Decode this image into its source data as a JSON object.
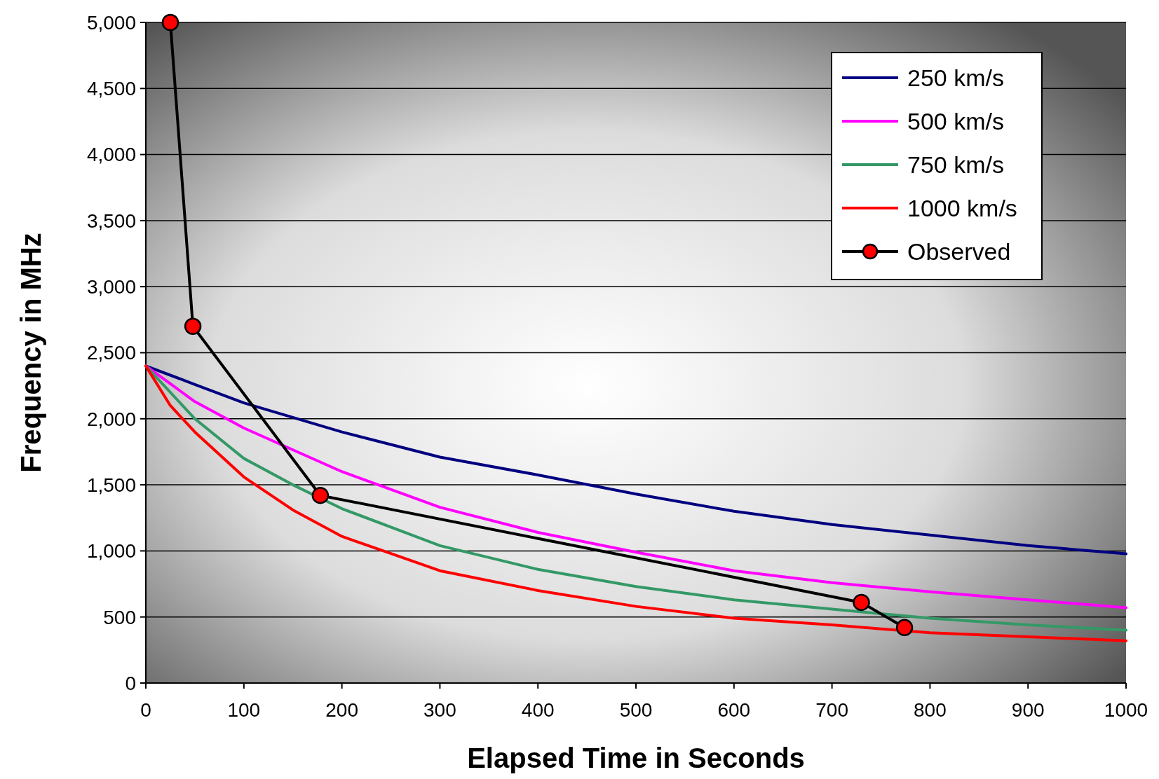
{
  "chart_data": {
    "type": "line",
    "xlabel": "Elapsed Time in Seconds",
    "ylabel": "Frequency in MHz",
    "xlim": [
      0,
      1000
    ],
    "xticks": [
      0,
      100,
      200,
      300,
      400,
      500,
      600,
      700,
      800,
      900,
      1000
    ],
    "ylim": [
      0,
      5000
    ],
    "yticks": [
      {
        "value": 0,
        "label": "0"
      },
      {
        "value": 500,
        "label": "500"
      },
      {
        "value": 1000,
        "label": "1,000"
      },
      {
        "value": 1500,
        "label": "1,500"
      },
      {
        "value": 2000,
        "label": "2,000"
      },
      {
        "value": 2500,
        "label": "2,500"
      },
      {
        "value": 3000,
        "label": "3,000"
      },
      {
        "value": 3500,
        "label": "3,500"
      },
      {
        "value": 4000,
        "label": "4,000"
      },
      {
        "value": 4500,
        "label": "4,500"
      },
      {
        "value": 5000,
        "label": "5,000"
      }
    ],
    "grid": "y",
    "legend": "top right",
    "series": [
      {
        "name": "250 km/s",
        "color": "#000080",
        "marker": "none",
        "x": [
          0,
          50,
          100,
          200,
          300,
          400,
          500,
          600,
          700,
          800,
          900,
          1000
        ],
        "values": [
          2400,
          2260,
          2120,
          1900,
          1710,
          1575,
          1430,
          1300,
          1200,
          1120,
          1040,
          978
        ]
      },
      {
        "name": "500 km/s",
        "color": "#ff00ff",
        "marker": "none",
        "x": [
          0,
          50,
          100,
          200,
          300,
          400,
          500,
          600,
          700,
          800,
          900,
          1000
        ],
        "values": [
          2400,
          2130,
          1930,
          1600,
          1330,
          1140,
          990,
          850,
          760,
          690,
          630,
          570
        ]
      },
      {
        "name": "750 km/s",
        "color": "#339966",
        "marker": "none",
        "x": [
          0,
          50,
          100,
          150,
          200,
          300,
          400,
          500,
          600,
          700,
          800,
          900,
          1000
        ],
        "values": [
          2400,
          2000,
          1700,
          1500,
          1320,
          1040,
          860,
          730,
          630,
          560,
          490,
          440,
          400
        ]
      },
      {
        "name": "1000 km/s",
        "color": "#ff0000",
        "marker": "none",
        "x": [
          0,
          25,
          50,
          100,
          150,
          200,
          250,
          300,
          400,
          500,
          600,
          700,
          800,
          900,
          1000
        ],
        "values": [
          2400,
          2100,
          1900,
          1560,
          1310,
          1110,
          980,
          850,
          700,
          580,
          490,
          440,
          380,
          350,
          320
        ]
      },
      {
        "name": "Observed",
        "color": "#000000",
        "marker": "circle",
        "x": [
          25,
          48,
          178,
          730,
          774
        ],
        "values": [
          5000,
          2700,
          1420,
          610,
          420
        ]
      }
    ]
  }
}
